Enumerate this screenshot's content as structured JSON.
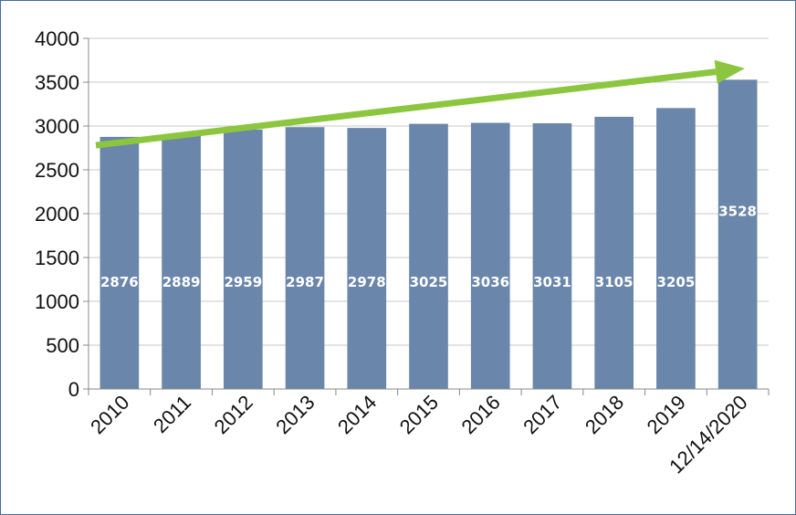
{
  "chart_data": {
    "type": "bar",
    "categories": [
      "2010",
      "2011",
      "2012",
      "2013",
      "2014",
      "2015",
      "2016",
      "2017",
      "2018",
      "2019",
      "12/14/2020"
    ],
    "values": [
      2876,
      2889,
      2959,
      2987,
      2978,
      3025,
      3036,
      3031,
      3105,
      3205,
      3528
    ],
    "data_labels": [
      "2876",
      "2889",
      "2959",
      "2987",
      "2978",
      "3025",
      "3036",
      "3031",
      "3105",
      "3205",
      "3528"
    ],
    "y_ticks": [
      "0",
      "500",
      "1000",
      "1500",
      "2000",
      "2500",
      "3000",
      "3500",
      "4000"
    ],
    "ylim": [
      0,
      4000
    ],
    "grid": true,
    "legend": "none",
    "trend_arrow": {
      "from": 2780,
      "to": 3650,
      "color": "#8cc63f"
    },
    "colors": {
      "bar": "#6a86aa",
      "grid": "#c8c8c8",
      "axis": "#888888",
      "frame": "#4a6aa0"
    }
  }
}
